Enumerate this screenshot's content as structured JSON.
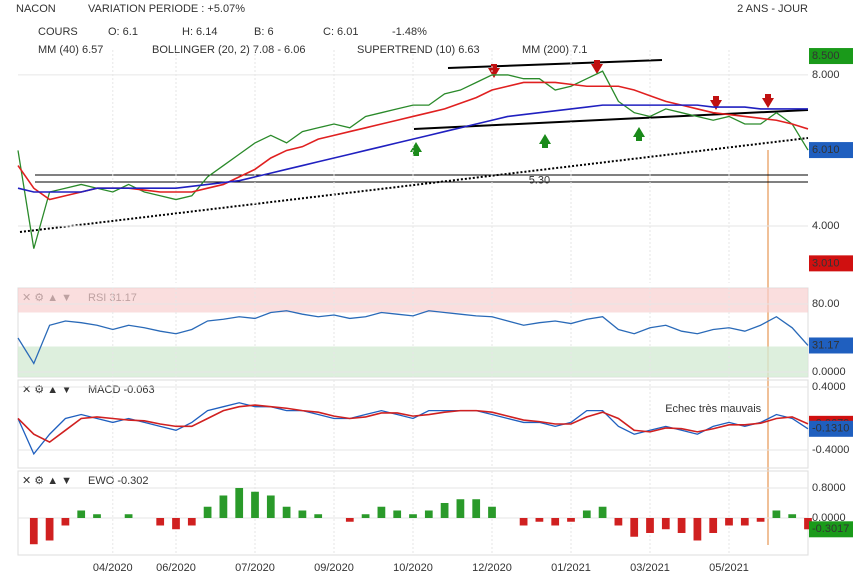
{
  "header": {
    "symbol": "NACON",
    "variation": "VARIATION PERIODE : +5.07%",
    "period": "2 ANS - JOUR"
  },
  "legend": {
    "row1": [
      {
        "text": "COURS",
        "color": "#555"
      },
      {
        "text": "O: 6.1",
        "color": "#333"
      },
      {
        "text": "H: 6.14",
        "color": "#333"
      },
      {
        "text": "B: 6",
        "color": "#333"
      },
      {
        "text": "C: 6.01",
        "color": "#333"
      },
      {
        "text": "-1.48%",
        "color": "#e01010"
      }
    ],
    "row2": [
      {
        "text": "MM (40) 6.57",
        "color": "#e02020"
      },
      {
        "text": "BOLLINGER (20, 2) 7.08 - 6.06",
        "color": "#e0a020"
      },
      {
        "text": "SUPERTREND (10) 6.63",
        "color": "#e02020"
      },
      {
        "text": "MM (200) 7.1",
        "color": "#2020c0"
      }
    ]
  },
  "chart_data": [
    {
      "type": "line",
      "name": "price",
      "series": [
        {
          "name": "COURS",
          "color": "#2a8a2a",
          "values": [
            6.0,
            3.4,
            4.9,
            5.0,
            5.1,
            5.0,
            4.9,
            5.1,
            4.9,
            4.8,
            4.7,
            4.8,
            5.3,
            5.6,
            5.9,
            6.2,
            6.4,
            6.2,
            6.5,
            6.6,
            6.7,
            6.6,
            6.9,
            7.0,
            7.1,
            7.2,
            7.2,
            7.5,
            7.6,
            7.8,
            8.0,
            8.0,
            7.9,
            7.9,
            7.6,
            7.7,
            7.9,
            8.1,
            7.3,
            7.0,
            6.9,
            7.1,
            7.0,
            6.9,
            6.8,
            6.9,
            6.7,
            6.7,
            7.0,
            6.7,
            6.01
          ]
        },
        {
          "name": "MM (40)",
          "color": "#e02020",
          "values": [
            5.6,
            5.0,
            4.7,
            4.8,
            4.9,
            5.0,
            5.0,
            5.0,
            4.95,
            4.9,
            4.9,
            4.9,
            5.0,
            5.1,
            5.3,
            5.5,
            5.8,
            6.0,
            6.1,
            6.3,
            6.4,
            6.5,
            6.6,
            6.7,
            6.8,
            6.9,
            7.0,
            7.1,
            7.25,
            7.4,
            7.6,
            7.7,
            7.8,
            7.8,
            7.8,
            7.75,
            7.7,
            7.7,
            7.7,
            7.6,
            7.45,
            7.3,
            7.2,
            7.1,
            7.0,
            6.95,
            6.9,
            6.85,
            6.8,
            6.7,
            6.57
          ]
        },
        {
          "name": "MM (200)",
          "color": "#2020c0",
          "values": [
            5.0,
            4.9,
            4.9,
            4.9,
            4.9,
            5.0,
            5.0,
            5.0,
            5.0,
            5.0,
            5.0,
            5.05,
            5.1,
            5.15,
            5.2,
            5.3,
            5.4,
            5.5,
            5.6,
            5.7,
            5.8,
            5.9,
            6.0,
            6.1,
            6.2,
            6.3,
            6.4,
            6.5,
            6.6,
            6.7,
            6.8,
            6.9,
            6.95,
            7.0,
            7.05,
            7.1,
            7.15,
            7.2,
            7.2,
            7.2,
            7.2,
            7.2,
            7.2,
            7.2,
            7.15,
            7.15,
            7.15,
            7.1,
            7.1,
            7.1,
            7.1
          ]
        }
      ],
      "ylim": [
        2.49,
        8.66
      ],
      "yticks": [
        {
          "value": 8,
          "label": "8.000"
        },
        {
          "value": 4,
          "label": "4.000"
        }
      ],
      "markers": [
        {
          "value": 8.5,
          "label": "8.500",
          "color": "#1a9a1a"
        },
        {
          "value": 6.01,
          "label": "6.010",
          "color": "#1f5fbf"
        },
        {
          "value": 3.01,
          "label": "3.010",
          "color": "#d01010"
        }
      ],
      "annotations": [
        {
          "text": "5.30",
          "x": 33,
          "y": 5.2
        }
      ]
    },
    {
      "type": "line",
      "name": "rsi",
      "title": "RSI 31.17",
      "series": [
        {
          "name": "RSI",
          "color": "#2a6ab8",
          "values": [
            40,
            10,
            55,
            60,
            58,
            55,
            50,
            55,
            52,
            48,
            45,
            50,
            60,
            62,
            65,
            63,
            70,
            72,
            68,
            65,
            67,
            63,
            65,
            70,
            68,
            66,
            72,
            70,
            68,
            66,
            65,
            60,
            55,
            58,
            60,
            57,
            62,
            65,
            50,
            45,
            52,
            55,
            48,
            45,
            50,
            52,
            48,
            55,
            65,
            52,
            31.17
          ]
        }
      ],
      "ylim": [
        -5.9,
        98.8
      ],
      "yticks": [
        {
          "value": 80,
          "label": "80.00"
        },
        {
          "value": 0,
          "label": "0.0000"
        }
      ],
      "overbought": 70,
      "oversold": 30,
      "markers": [
        {
          "value": 31.17,
          "label": "31.17",
          "color": "#1f5fbf"
        }
      ]
    },
    {
      "type": "line",
      "name": "macd",
      "title": "MACD -0.063",
      "series": [
        {
          "name": "MACD",
          "color": "#1f5fbf",
          "values": [
            0,
            -0.45,
            -0.2,
            0.0,
            0.05,
            0.0,
            -0.05,
            0.0,
            -0.05,
            -0.1,
            -0.15,
            -0.05,
            0.1,
            0.15,
            0.2,
            0.15,
            0.15,
            0.1,
            0.1,
            0.05,
            0.0,
            0.0,
            0.05,
            0.1,
            0.05,
            0.0,
            0.1,
            0.1,
            0.1,
            0.1,
            0.05,
            0.0,
            -0.05,
            -0.05,
            -0.1,
            -0.05,
            0.1,
            0.1,
            -0.1,
            -0.2,
            -0.15,
            -0.1,
            -0.15,
            -0.2,
            -0.1,
            -0.05,
            -0.1,
            -0.05,
            0.05,
            0.0,
            -0.131
          ]
        },
        {
          "name": "Signal",
          "color": "#d02020",
          "values": [
            0,
            -0.2,
            -0.3,
            -0.15,
            0.0,
            0.02,
            0.0,
            -0.02,
            -0.03,
            -0.07,
            -0.1,
            -0.1,
            0.0,
            0.1,
            0.15,
            0.17,
            0.15,
            0.13,
            0.1,
            0.08,
            0.03,
            0.0,
            0.02,
            0.07,
            0.07,
            0.03,
            0.05,
            0.08,
            0.1,
            0.1,
            0.08,
            0.03,
            -0.02,
            -0.04,
            -0.07,
            -0.07,
            0.02,
            0.08,
            0.0,
            -0.15,
            -0.17,
            -0.12,
            -0.13,
            -0.17,
            -0.13,
            -0.08,
            -0.08,
            -0.06,
            0.0,
            0.02,
            -0.0679
          ]
        }
      ],
      "ylim": [
        -0.629,
        0.489
      ],
      "yticks": [
        {
          "value": 0.4,
          "label": "0.4000"
        },
        {
          "value": -0.4,
          "label": "-0.4000"
        }
      ],
      "markers": [
        {
          "value": -0.0679,
          "label": "-0.0679",
          "color": "#d01010"
        },
        {
          "value": -0.131,
          "label": "-0.1310",
          "color": "#1f5fbf"
        }
      ],
      "annotations": [
        {
          "text": "Echec très mauvais",
          "x": 44,
          "y": 0.12
        }
      ]
    },
    {
      "type": "bar",
      "name": "ewo",
      "title": "EWO -0.302",
      "values": [
        0,
        -0.7,
        -0.6,
        -0.2,
        0.2,
        0.1,
        0.0,
        0.1,
        0.0,
        -0.2,
        -0.3,
        -0.2,
        0.3,
        0.6,
        0.8,
        0.7,
        0.6,
        0.3,
        0.2,
        0.1,
        0.0,
        -0.1,
        0.1,
        0.3,
        0.2,
        0.1,
        0.2,
        0.4,
        0.5,
        0.5,
        0.3,
        0.0,
        -0.2,
        -0.1,
        -0.2,
        -0.1,
        0.2,
        0.3,
        -0.2,
        -0.5,
        -0.4,
        -0.3,
        -0.4,
        -0.6,
        -0.4,
        -0.2,
        -0.2,
        -0.1,
        0.2,
        0.1,
        -0.3017
      ],
      "color_positive": "#2a9a2a",
      "color_negative": "#d02020",
      "ylim": [
        -0.987,
        1.253
      ],
      "yticks": [
        {
          "value": 0.8,
          "label": "0.8000"
        },
        {
          "value": 0,
          "label": "0.0000"
        }
      ],
      "markers": [
        {
          "value": -0.3017,
          "label": "-0.3017",
          "color": "#1a9a1a"
        }
      ],
      "xlim": [
        0,
        50
      ],
      "xticks": [
        {
          "value": 6,
          "label": "04/2020"
        },
        {
          "value": 10,
          "label": "06/2020"
        },
        {
          "value": 15,
          "label": "07/2020"
        },
        {
          "value": 20,
          "label": "09/2020"
        },
        {
          "value": 25,
          "label": "10/2020"
        },
        {
          "value": 30,
          "label": "12/2020"
        },
        {
          "value": 35,
          "label": "01/2021"
        },
        {
          "value": 40,
          "label": "03/2021"
        },
        {
          "value": 45,
          "label": "05/2021"
        }
      ]
    }
  ]
}
